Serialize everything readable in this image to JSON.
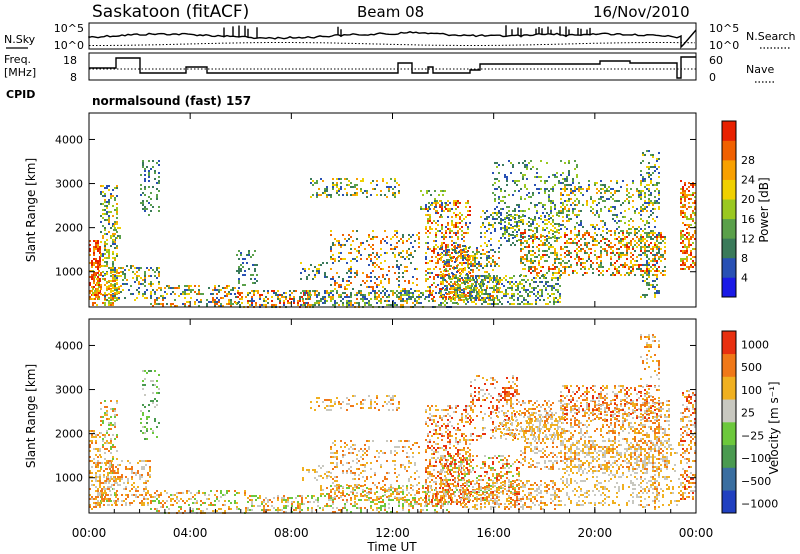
{
  "header": {
    "station": "Saskatoon (fitACF)",
    "beam": "Beam 08",
    "date": "16/Nov/2010"
  },
  "noise_panel": {
    "left_label": "N.Sky",
    "right_label": "N.Search",
    "left_ticks": [
      "10^5",
      "10^0"
    ],
    "right_ticks": [
      "10^5",
      "10^0"
    ]
  },
  "freq_panel": {
    "left_label_1": "Freq.",
    "left_label_2": "[MHz]",
    "right_label": "Nave",
    "left_ticks": [
      "18",
      "8"
    ],
    "right_ticks": [
      "60",
      "0"
    ]
  },
  "cpid": {
    "label": "CPID",
    "value": "normalsound (fast) 157"
  },
  "chart_data": [
    {
      "type": "heatmap",
      "panel": "power",
      "ylabel": "Slant Range [km]",
      "yticks": [
        "1000",
        "2000",
        "3000",
        "4000"
      ],
      "ylim": [
        200,
        4600
      ],
      "colorbar_label": "Power [dB]",
      "colorbar_ticks": [
        "4",
        "8",
        "12",
        "16",
        "20",
        "24",
        "28"
      ],
      "colorbar_colors": [
        "#1a1ae6",
        "#2850b4",
        "#3a7a5a",
        "#5aa04a",
        "#9ac820",
        "#f0d000",
        "#f8a000",
        "#f06000",
        "#e82000"
      ]
    },
    {
      "type": "heatmap",
      "panel": "velocity",
      "ylabel": "Slant Range [km]",
      "yticks": [
        "1000",
        "2000",
        "3000",
        "4000"
      ],
      "ylim": [
        200,
        4600
      ],
      "colorbar_label": "Velocity [m s⁻¹]",
      "colorbar_ticks": [
        "1000",
        "500",
        "100",
        "25",
        "−25",
        "−100",
        "−500",
        "−1000"
      ],
      "colorbar_colors": [
        "#2040c0",
        "#3a6ea0",
        "#4a9a50",
        "#6cc83c",
        "#c8c8c0",
        "#f0b020",
        "#f07818",
        "#e83010"
      ],
      "xticks": [
        "00:00",
        "04:00",
        "08:00",
        "12:00",
        "16:00",
        "20:00",
        "00:00"
      ],
      "xlabel": "Time UT"
    }
  ]
}
